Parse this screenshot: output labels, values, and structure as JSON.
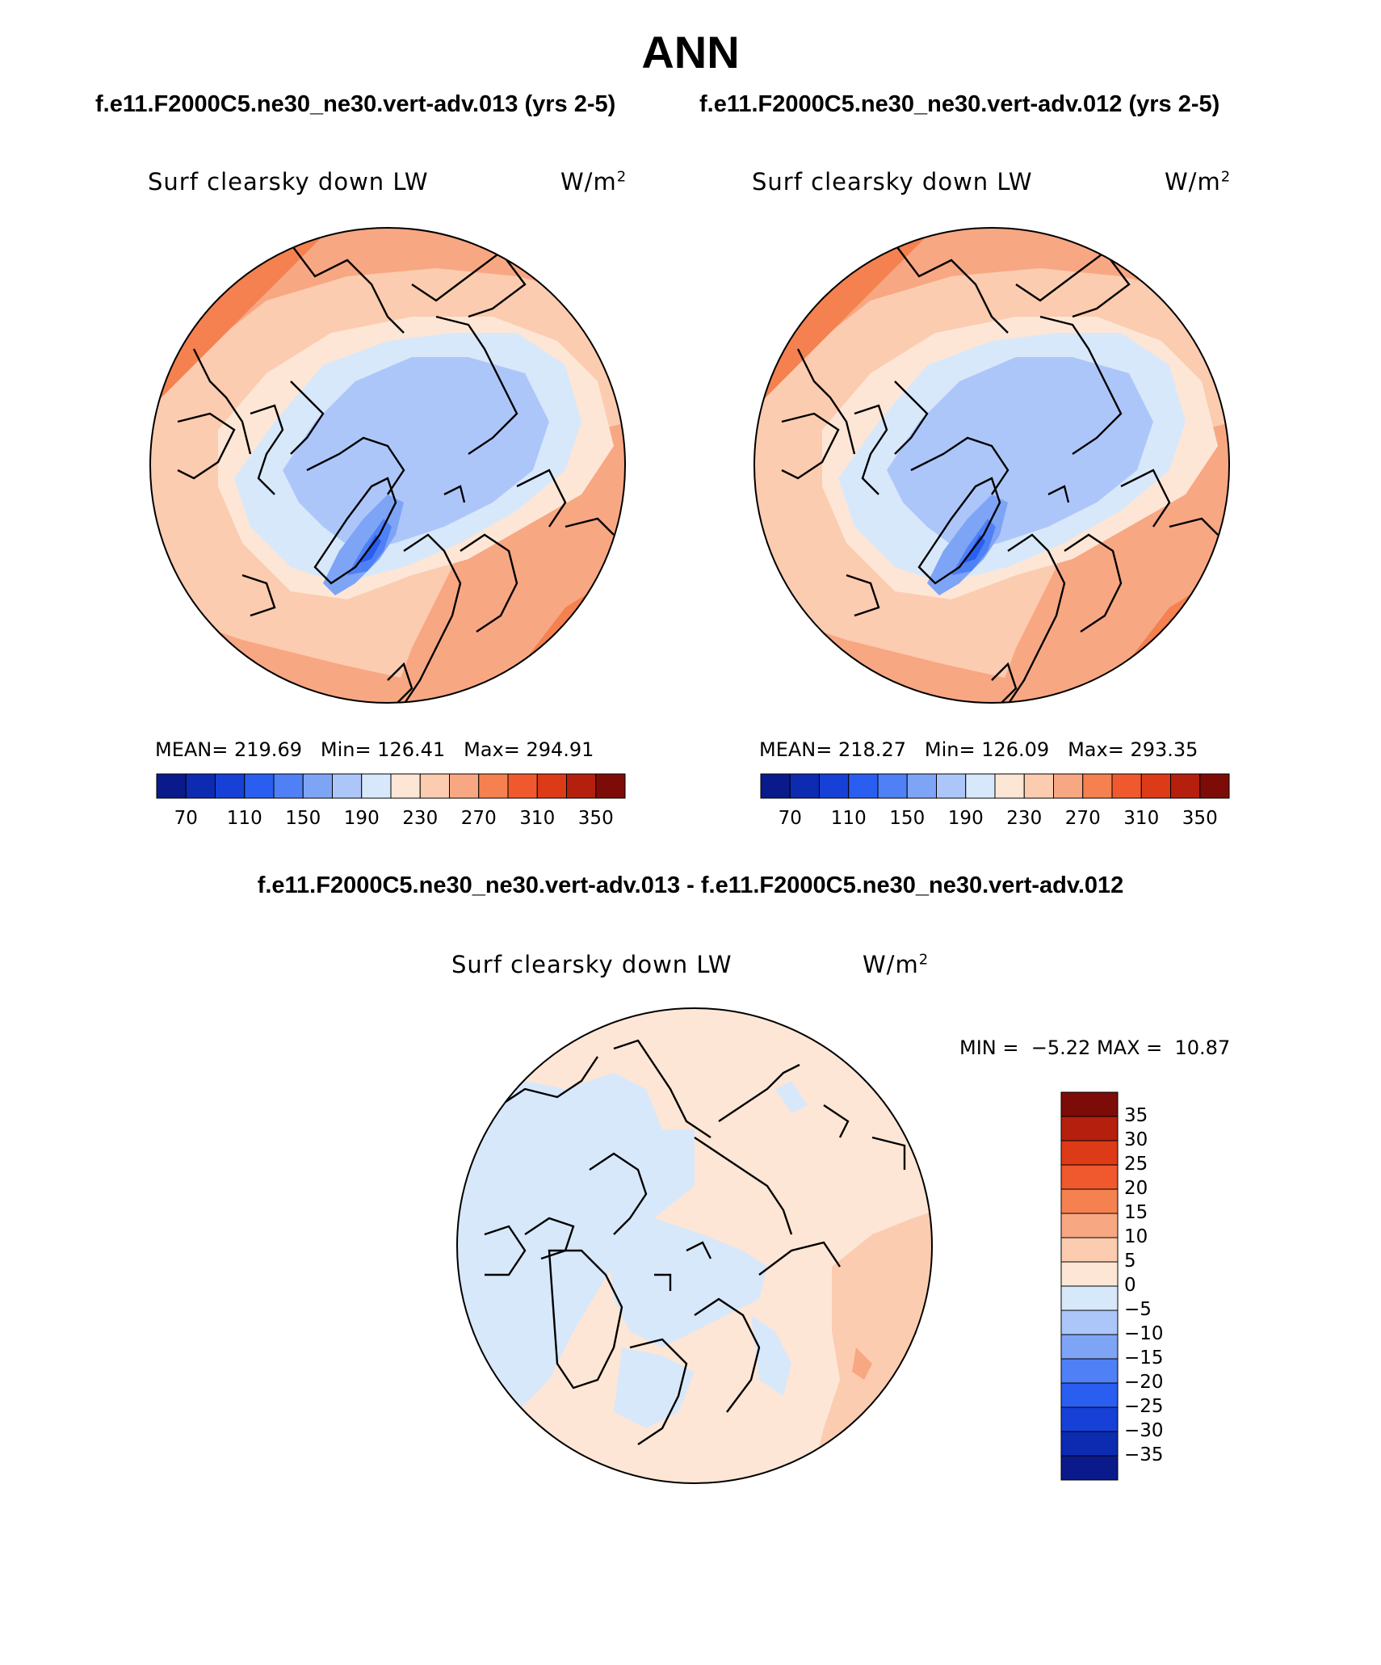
{
  "title": "ANN",
  "top_left": {
    "case": "f.e11.F2000C5.ne30_ne30.vert-adv.013 (yrs 2-5)",
    "variable": "Surf clearsky down LW",
    "units_base": "W/m",
    "units_exp": "2",
    "stats": {
      "mean_label": "MEAN=",
      "mean": "219.69",
      "min_label": "Min=",
      "min": "126.41",
      "max_label": "Max=",
      "max": "294.91"
    }
  },
  "top_right": {
    "case": "f.e11.F2000C5.ne30_ne30.vert-adv.012 (yrs 2-5)",
    "variable": "Surf clearsky down LW",
    "units_base": "W/m",
    "units_exp": "2",
    "stats": {
      "mean_label": "MEAN=",
      "mean": "218.27",
      "min_label": "Min=",
      "min": "126.09",
      "max_label": "Max=",
      "max": "293.35"
    }
  },
  "difference": {
    "title": "f.e11.F2000C5.ne30_ne30.vert-adv.013 - f.e11.F2000C5.ne30_ne30.vert-adv.012",
    "variable": "Surf clearsky down LW",
    "units_base": "W/m",
    "units_exp": "2",
    "minmax": {
      "min_label": "MIN =",
      "min": "−5.22",
      "max_label": "MAX =",
      "max": "10.87"
    }
  },
  "abs_colorbar": {
    "colors": [
      "#0a1a8a",
      "#0c2bb0",
      "#1640d6",
      "#2a5ef0",
      "#4f80f5",
      "#7ea4f6",
      "#adc6fa",
      "#d8e8fb",
      "#fde6d5",
      "#fcccb0",
      "#f8a783",
      "#f4814f",
      "#f0592d",
      "#dd3a17",
      "#b51f0e",
      "#7d0c08"
    ],
    "labels": [
      "70",
      "110",
      "150",
      "190",
      "230",
      "270",
      "310",
      "350"
    ]
  },
  "diff_colorbar": {
    "colors": [
      "#7d0c08",
      "#b51f0e",
      "#dd3a17",
      "#f0592d",
      "#f4814f",
      "#f8a783",
      "#fcccb0",
      "#fde6d5",
      "#d8e8fb",
      "#adc6fa",
      "#7ea4f6",
      "#4f80f5",
      "#2a5ef0",
      "#1640d6",
      "#0c2bb0",
      "#0a1a8a"
    ],
    "labels": [
      "35",
      "30",
      "25",
      "20",
      "15",
      "10",
      "5",
      "0",
      "−5",
      "−10",
      "−15",
      "−20",
      "−25",
      "−30",
      "−35"
    ]
  }
}
